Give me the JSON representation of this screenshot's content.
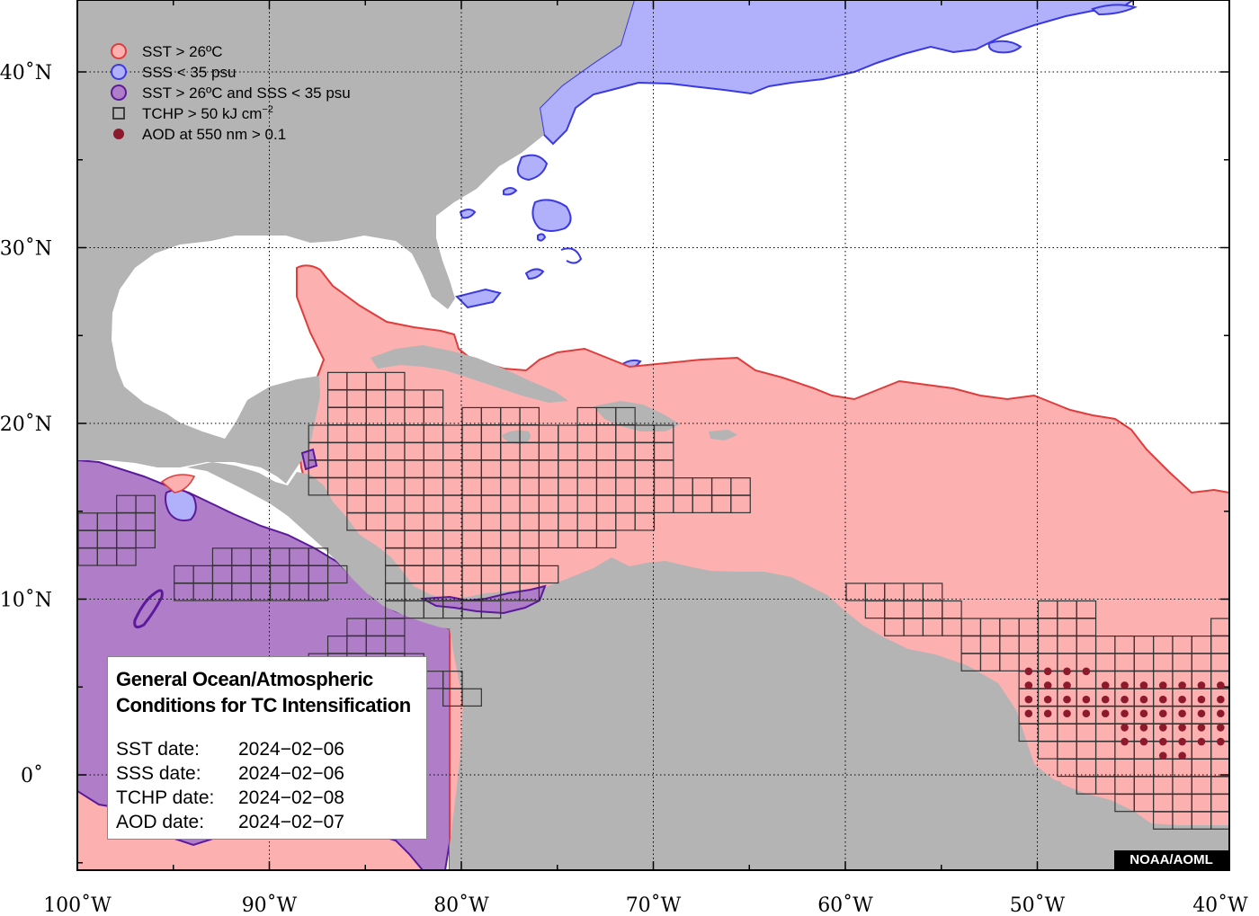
{
  "map": {
    "axes": {
      "x_ticks": [
        {
          "lon": -100,
          "label": "100˚W"
        },
        {
          "lon": -90,
          "label": "90˚W"
        },
        {
          "lon": -80,
          "label": "80˚W"
        },
        {
          "lon": -70,
          "label": "70˚W"
        },
        {
          "lon": -60,
          "label": "60˚W"
        },
        {
          "lon": -50,
          "label": "50˚W"
        },
        {
          "lon": -40,
          "label": "40˚W"
        }
      ],
      "y_ticks": [
        {
          "lat": 40,
          "label": "40˚N"
        },
        {
          "lat": 30,
          "label": "30˚N"
        },
        {
          "lat": 20,
          "label": "20˚N"
        },
        {
          "lat": 10,
          "label": "10˚N"
        },
        {
          "lat": 0,
          "label": "0˚"
        }
      ],
      "lon_range": [
        -100,
        -40
      ],
      "lat_range": [
        -5,
        44
      ],
      "gridlines": "dotted"
    },
    "legend": [
      {
        "id": "sst",
        "label": "SST > 26ºC",
        "marker": "circle",
        "fill": "#fdb0b0",
        "stroke": "#e03c3c"
      },
      {
        "id": "sss",
        "label": "SSS < 35 psu",
        "marker": "circle",
        "fill": "#b0b0fb",
        "stroke": "#3a3ae0"
      },
      {
        "id": "both",
        "label": "SST > 26ºC and SSS < 35 psu",
        "marker": "circle",
        "fill": "#b07ec8",
        "stroke": "#5a1a9a"
      },
      {
        "id": "tchp",
        "label": "TCHP > 50 kJ cm",
        "label_sup": "−2",
        "marker": "square",
        "fill": "none",
        "stroke": "#333333"
      },
      {
        "id": "aod",
        "label": "AOD at 550 nm > 0.1",
        "marker": "dot",
        "fill": "#8c1a2c",
        "stroke": "#8c1a2c"
      }
    ],
    "colors": {
      "land": "#b4b4b4",
      "ocean": "#ffffff",
      "sst": "#fdb0b0",
      "sst_outline": "#e03c3c",
      "sss": "#b0b0fb",
      "sss_outline": "#3a3ae0",
      "both": "#b07ec8",
      "both_outline": "#5a1a9a",
      "tchp_grid": "#333333",
      "aod": "#8c1a2c"
    }
  },
  "info": {
    "title_line1": "General Ocean/Atmospheric",
    "title_line2": "Conditions for TC Intensification",
    "rows": [
      {
        "label": "SST date:",
        "value": "2024−02−06"
      },
      {
        "label": "SSS date:",
        "value": "2024−02−06"
      },
      {
        "label": "TCHP date:",
        "value": "2024−02−08"
      },
      {
        "label": "AOD date:",
        "value": "2024−02−07"
      }
    ]
  },
  "credit": "NOAA/AOML"
}
